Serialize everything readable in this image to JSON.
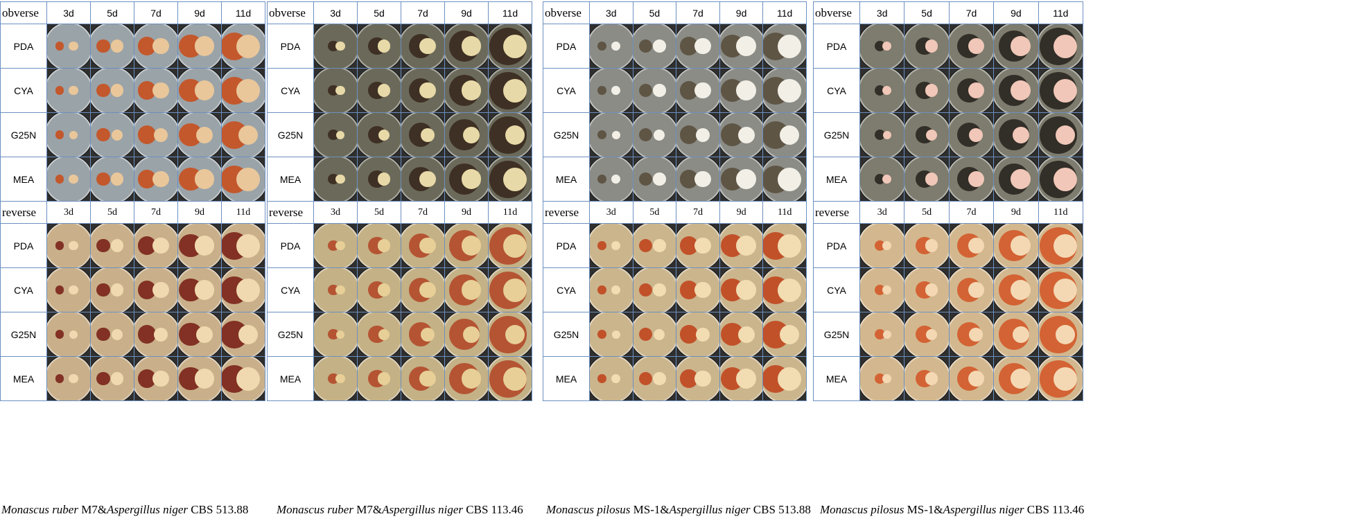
{
  "days": [
    "3d",
    "5d",
    "7d",
    "9d",
    "11d"
  ],
  "media": [
    "PDA",
    "CYA",
    "G25N",
    "MEA"
  ],
  "views": {
    "obverse": "obverse",
    "reverse": "reverse"
  },
  "panels": [
    {
      "caption": {
        "sp1": "Monascus ruber",
        "s1": " M7&",
        "sp2": "Aspergillus niger",
        "s2": " CBS 513.88"
      },
      "tone": {
        "agar": "#9aa3a8",
        "mon": "#e9c79a",
        "asp": "#c8501e",
        "rev_agar": "#c9b08a",
        "rev_mon": "#f0d9b0",
        "rev_asp": "#7a2418"
      }
    },
    {
      "caption": {
        "sp1": "Monascus ruber",
        "s1": " M7&",
        "sp2": "Aspergillus niger",
        "s2": " CBS 113.46"
      },
      "tone": {
        "agar": "#6b6a5a",
        "mon": "#e8d9a8",
        "asp": "#3a2a1e",
        "rev_agar": "#c4b186",
        "rev_mon": "#e7cf97",
        "rev_asp": "#b34a2a"
      }
    },
    {
      "caption": {
        "sp1": "Monascus pilosus",
        "s1": " MS-1&",
        "sp2": "Aspergillus niger",
        "s2": " CBS 513.88"
      },
      "tone": {
        "agar": "#8b8c86",
        "mon": "#f2efe6",
        "asp": "#5a4f3e",
        "rev_agar": "#cbb58d",
        "rev_mon": "#f2dcb2",
        "rev_asp": "#c0461e"
      }
    },
    {
      "caption": {
        "sp1": "Monascus pilosus",
        "s1": " MS-1&",
        "sp2": "Aspergillus niger",
        "s2": " CBS 113.46"
      },
      "tone": {
        "agar": "#7d7c6e",
        "mon": "#f0c7b8",
        "asp": "#2a2620",
        "rev_agar": "#d3b88f",
        "rev_mon": "#f4d8b4",
        "rev_asp": "#d35a2a"
      }
    }
  ]
}
